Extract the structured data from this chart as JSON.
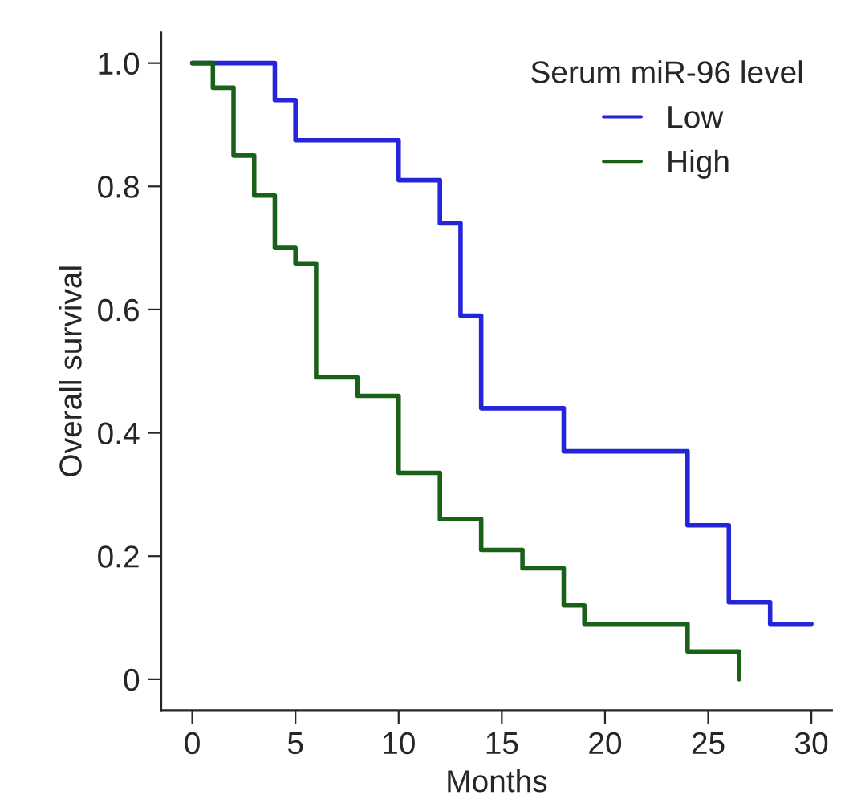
{
  "chart_data": {
    "type": "step",
    "xlabel": "Months",
    "ylabel": "Overall survival",
    "legend_title": "Serum miR-96 level",
    "legend": "top right",
    "grid": false,
    "xlim": [
      -1.5,
      31
    ],
    "ylim": [
      -0.05,
      1.05
    ],
    "xticks": [
      0,
      5,
      10,
      15,
      20,
      25,
      30
    ],
    "yticks": [
      0,
      {
        "value": 0.2,
        "label": "0.2"
      },
      {
        "value": 0.4,
        "label": "0.4"
      },
      {
        "value": 0.6,
        "label": "0.6"
      },
      {
        "value": 0.8,
        "label": "0.8"
      },
      {
        "value": 1,
        "label": "1.0"
      }
    ],
    "series": [
      {
        "name": "Low",
        "color": "#2424d8",
        "x": [
          0,
          4,
          5,
          10,
          12,
          13,
          14,
          18,
          24,
          26,
          28,
          30
        ],
        "values": [
          1,
          0.94,
          0.875,
          0.81,
          0.74,
          0.59,
          0.44,
          0.37,
          0.25,
          0.125,
          0.09,
          0.09
        ]
      },
      {
        "name": "High",
        "color": "#1a6118",
        "x": [
          0,
          1,
          2,
          3,
          4,
          5,
          6,
          8,
          10,
          12,
          14,
          16,
          18,
          19,
          24,
          26.5
        ],
        "values": [
          1,
          0.96,
          0.85,
          0.785,
          0.7,
          0.675,
          0.49,
          0.46,
          0.335,
          0.26,
          0.21,
          0.18,
          0.12,
          0.09,
          0.045,
          0
        ]
      }
    ]
  }
}
